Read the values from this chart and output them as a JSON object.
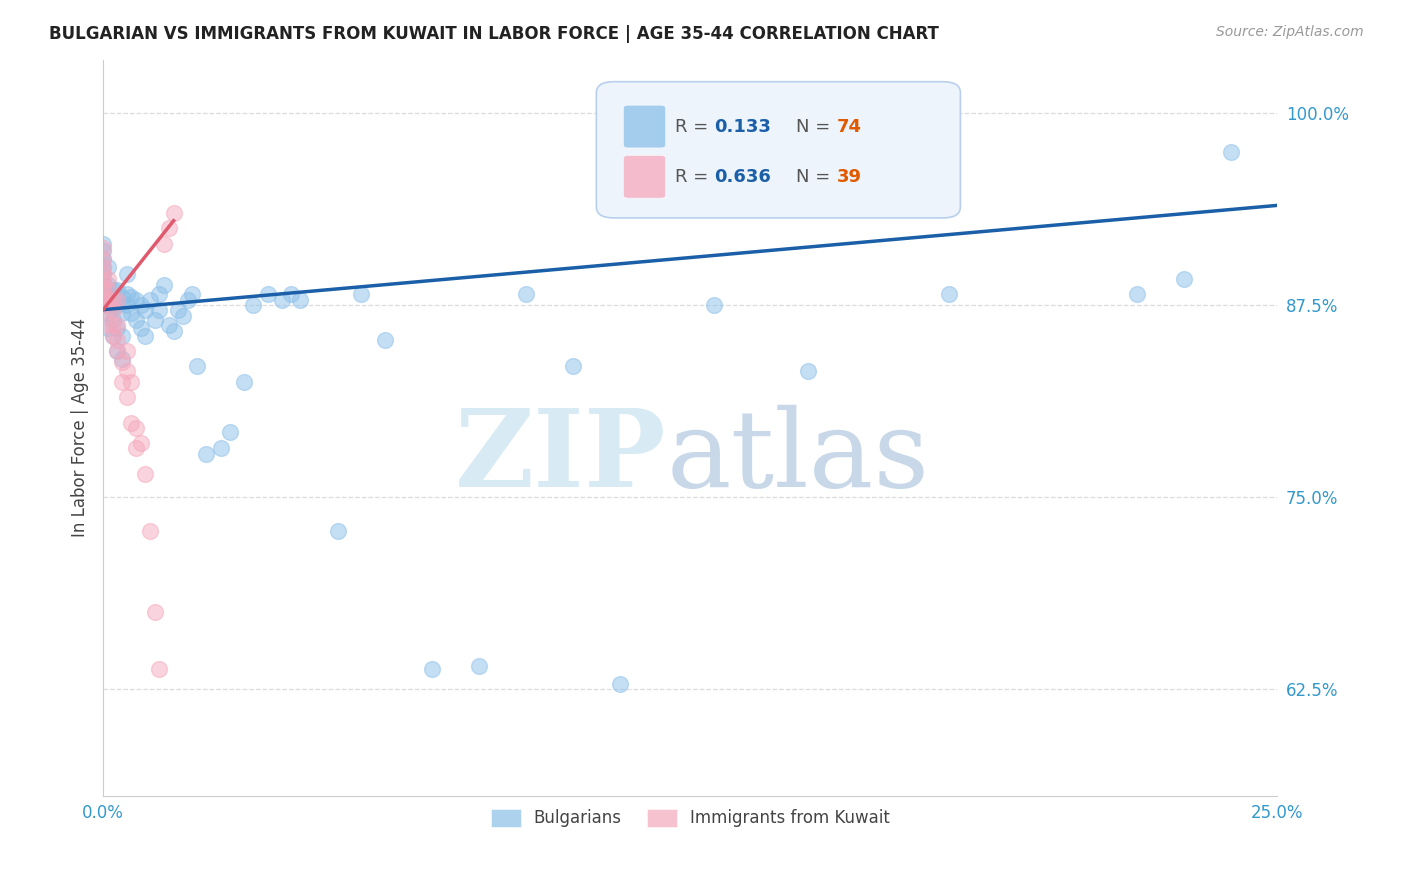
{
  "title": "BULGARIAN VS IMMIGRANTS FROM KUWAIT IN LABOR FORCE | AGE 35-44 CORRELATION CHART",
  "source": "Source: ZipAtlas.com",
  "ylabel": "In Labor Force | Age 35-44",
  "xlim": [
    0.0,
    0.25
  ],
  "ylim": [
    0.555,
    1.035
  ],
  "xticks": [
    0.0,
    0.05,
    0.1,
    0.15,
    0.2,
    0.25
  ],
  "xticklabels": [
    "0.0%",
    "",
    "",
    "",
    "",
    "25.0%"
  ],
  "yticks": [
    0.625,
    0.75,
    0.875,
    1.0
  ],
  "yticklabels": [
    "62.5%",
    "75.0%",
    "87.5%",
    "100.0%"
  ],
  "bg_color": "#ffffff",
  "grid_color": "#d8d8d8",
  "bulgarians_color": "#8bbfe8",
  "kuwait_color": "#f5a8bc",
  "blue_line_color": "#1a5fa8",
  "pink_line_color": "#e05a6e",
  "legend_box_color": "#eef4fc",
  "legend_border_color": "#b8d0ec",
  "R_blue": 0.133,
  "N_blue": 74,
  "R_pink": 0.636,
  "N_pink": 39,
  "bulgarians_x": [
    0.0,
    0.0,
    0.0,
    0.0,
    0.0,
    0.0,
    0.0,
    0.0,
    0.0,
    0.0,
    0.001,
    0.001,
    0.001,
    0.001,
    0.001,
    0.001,
    0.002,
    0.002,
    0.002,
    0.002,
    0.003,
    0.003,
    0.003,
    0.003,
    0.004,
    0.004,
    0.004,
    0.004,
    0.005,
    0.005,
    0.005,
    0.006,
    0.006,
    0.007,
    0.007,
    0.008,
    0.008,
    0.009,
    0.009,
    0.01,
    0.011,
    0.012,
    0.012,
    0.013,
    0.014,
    0.015,
    0.016,
    0.017,
    0.018,
    0.019,
    0.02,
    0.022,
    0.025,
    0.027,
    0.03,
    0.032,
    0.035,
    0.038,
    0.04,
    0.042,
    0.05,
    0.055,
    0.06,
    0.07,
    0.08,
    0.09,
    0.1,
    0.11,
    0.13,
    0.15,
    0.18,
    0.22,
    0.23,
    0.24
  ],
  "bulgarians_y": [
    0.875,
    0.878,
    0.882,
    0.886,
    0.89,
    0.895,
    0.9,
    0.905,
    0.91,
    0.915,
    0.86,
    0.87,
    0.875,
    0.882,
    0.888,
    0.9,
    0.855,
    0.865,
    0.875,
    0.885,
    0.845,
    0.86,
    0.875,
    0.885,
    0.84,
    0.855,
    0.87,
    0.88,
    0.875,
    0.882,
    0.895,
    0.87,
    0.88,
    0.865,
    0.878,
    0.86,
    0.875,
    0.855,
    0.872,
    0.878,
    0.865,
    0.872,
    0.882,
    0.888,
    0.862,
    0.858,
    0.872,
    0.868,
    0.878,
    0.882,
    0.835,
    0.778,
    0.782,
    0.792,
    0.825,
    0.875,
    0.882,
    0.878,
    0.882,
    0.878,
    0.728,
    0.882,
    0.852,
    0.638,
    0.64,
    0.882,
    0.835,
    0.628,
    0.875,
    0.832,
    0.882,
    0.882,
    0.892,
    0.975
  ],
  "kuwait_x": [
    0.0,
    0.0,
    0.0,
    0.0,
    0.0,
    0.0,
    0.0,
    0.0,
    0.0,
    0.001,
    0.001,
    0.001,
    0.001,
    0.001,
    0.002,
    0.002,
    0.002,
    0.002,
    0.003,
    0.003,
    0.003,
    0.003,
    0.004,
    0.004,
    0.005,
    0.005,
    0.005,
    0.006,
    0.006,
    0.007,
    0.007,
    0.008,
    0.009,
    0.01,
    0.011,
    0.012,
    0.013,
    0.014,
    0.015
  ],
  "kuwait_y": [
    0.875,
    0.878,
    0.882,
    0.886,
    0.89,
    0.895,
    0.9,
    0.905,
    0.912,
    0.862,
    0.872,
    0.878,
    0.885,
    0.892,
    0.855,
    0.862,
    0.872,
    0.878,
    0.845,
    0.852,
    0.862,
    0.878,
    0.825,
    0.838,
    0.815,
    0.832,
    0.845,
    0.798,
    0.825,
    0.782,
    0.795,
    0.785,
    0.765,
    0.728,
    0.675,
    0.638,
    0.915,
    0.925,
    0.935
  ]
}
